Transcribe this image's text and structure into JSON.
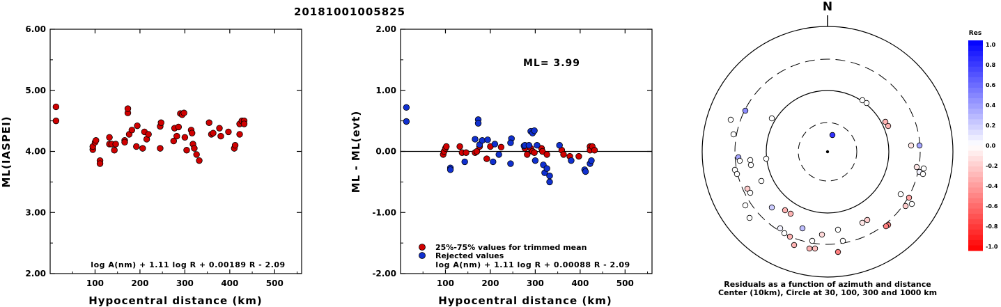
{
  "title": "20181001005825",
  "chart_data": [
    {
      "type": "scatter",
      "xlabel": "Hypocentral distance (km)",
      "ylabel": "ML(IASPEI)",
      "xlim": [
        0,
        560
      ],
      "ylim": [
        2.0,
        6.0
      ],
      "xticks": [
        "100",
        "200",
        "300",
        "400",
        "500"
      ],
      "yticks": [
        "2.00",
        "3.00",
        "4.00",
        "5.00",
        "6.00"
      ],
      "formula": "log A(nm) + 1.11 log R + 0.00189 R - 2.09",
      "series": [
        {
          "color": "#d00000",
          "points": [
            [
              13,
              4.73
            ],
            [
              13,
              4.5
            ],
            [
              95,
              4.03
            ],
            [
              95,
              4.08
            ],
            [
              100,
              4.15
            ],
            [
              102,
              4.18
            ],
            [
              111,
              3.85
            ],
            [
              111,
              3.8
            ],
            [
              132,
              4.12
            ],
            [
              132,
              4.23
            ],
            [
              137,
              4.12
            ],
            [
              143,
              4.02
            ],
            [
              146,
              4.12
            ],
            [
              166,
              4.18
            ],
            [
              166,
              4.15
            ],
            [
              173,
              4.63
            ],
            [
              173,
              4.7
            ],
            [
              176,
              4.28
            ],
            [
              182,
              4.35
            ],
            [
              192,
              4.08
            ],
            [
              194,
              4.42
            ],
            [
              206,
              4.05
            ],
            [
              210,
              4.32
            ],
            [
              215,
              4.2
            ],
            [
              219,
              4.28
            ],
            [
              245,
              4.05
            ],
            [
              245,
              4.41
            ],
            [
              247,
              4.47
            ],
            [
              275,
              4.17
            ],
            [
              277,
              4.38
            ],
            [
              282,
              4.25
            ],
            [
              286,
              4.4
            ],
            [
              290,
              4.62
            ],
            [
              294,
              4.6
            ],
            [
              298,
              4.63
            ],
            [
              300,
              4.23
            ],
            [
              304,
              4.02
            ],
            [
              314,
              4.35
            ],
            [
              316,
              4.3
            ],
            [
              318,
              4.12
            ],
            [
              321,
              4.05
            ],
            [
              326,
              3.95
            ],
            [
              332,
              3.85
            ],
            [
              354,
              4.47
            ],
            [
              359,
              4.28
            ],
            [
              363,
              4.3
            ],
            [
              377,
              4.38
            ],
            [
              380,
              4.25
            ],
            [
              397,
              4.32
            ],
            [
              410,
              4.05
            ],
            [
              412,
              4.1
            ],
            [
              422,
              4.45
            ],
            [
              422,
              4.28
            ],
            [
              427,
              4.5
            ],
            [
              432,
              4.5
            ],
            [
              432,
              4.45
            ]
          ]
        }
      ]
    },
    {
      "type": "scatter",
      "xlabel": "Hypocentral distance (km)",
      "ylabel": "ML - ML(evt)",
      "xlim": [
        0,
        560
      ],
      "ylim": [
        -2.0,
        2.0
      ],
      "xticks": [
        "100",
        "200",
        "300",
        "400",
        "500"
      ],
      "yticks": [
        "-2.00",
        "-1.00",
        "0.00",
        "1.00",
        "2.00"
      ],
      "annotation": "ML= 3.99",
      "hline": 0,
      "formula": "log A(nm) + 1.11 log R + 0.00088 R - 2.09",
      "series": [
        {
          "name": "25%-75% values for trimmed mean",
          "color": "#d00000",
          "points": [
            [
              95,
              -0.05
            ],
            [
              97,
              0.0
            ],
            [
              100,
              0.05
            ],
            [
              102,
              0.08
            ],
            [
              132,
              0.08
            ],
            [
              137,
              -0.02
            ],
            [
              146,
              -0.02
            ],
            [
              166,
              -0.02
            ],
            [
              170,
              0.0
            ],
            [
              176,
              0.08
            ],
            [
              192,
              -0.12
            ],
            [
              200,
              0.08
            ],
            [
              224,
              0.07
            ],
            [
              277,
              0.05
            ],
            [
              282,
              -0.05
            ],
            [
              290,
              0.05
            ],
            [
              294,
              0.0
            ],
            [
              298,
              -0.02
            ],
            [
              314,
              0.05
            ],
            [
              316,
              0.0
            ],
            [
              326,
              -0.05
            ],
            [
              359,
              0.02
            ],
            [
              363,
              -0.05
            ],
            [
              377,
              -0.08
            ],
            [
              397,
              -0.08
            ],
            [
              422,
              0.08
            ],
            [
              422,
              0.02
            ],
            [
              427,
              0.08
            ],
            [
              432,
              0.02
            ]
          ]
        },
        {
          "name": "Rejected values",
          "color": "#1030d0",
          "points": [
            [
              13,
              0.72
            ],
            [
              13,
              0.49
            ],
            [
              111,
              -0.27
            ],
            [
              111,
              -0.3
            ],
            [
              143,
              -0.17
            ],
            [
              166,
              0.2
            ],
            [
              173,
              0.52
            ],
            [
              173,
              0.46
            ],
            [
              176,
              0.11
            ],
            [
              182,
              0.18
            ],
            [
              194,
              0.19
            ],
            [
              206,
              -0.17
            ],
            [
              210,
              0.12
            ],
            [
              219,
              -0.05
            ],
            [
              245,
              -0.2
            ],
            [
              247,
              0.21
            ],
            [
              245,
              0.14
            ],
            [
              275,
              0.09
            ],
            [
              277,
              0.1
            ],
            [
              286,
              0.1
            ],
            [
              290,
              0.33
            ],
            [
              294,
              0.3
            ],
            [
              298,
              0.34
            ],
            [
              300,
              -0.15
            ],
            [
              304,
              0.1
            ],
            [
              318,
              -0.22
            ],
            [
              321,
              -0.35
            ],
            [
              326,
              -0.28
            ],
            [
              332,
              -0.5
            ],
            [
              332,
              -0.4
            ],
            [
              354,
              0.1
            ],
            [
              380,
              -0.15
            ],
            [
              410,
              -0.3
            ],
            [
              412,
              -0.33
            ],
            [
              422,
              -0.2
            ],
            [
              425,
              -0.15
            ]
          ]
        }
      ]
    },
    {
      "type": "scatter",
      "subtype": "polar",
      "north_label": "N",
      "caption1": "Residuals as a function of azimuth and distance",
      "caption2": "Center (10km), Circle at 30, 100, 300 and 1000 km",
      "colorbar_title": "Res",
      "colorbar_ticks": [
        "1.0",
        "0.8",
        "0.6",
        "0.4",
        "0.2",
        "0.0",
        "-0.2",
        "-0.4",
        "-0.6",
        "-0.8",
        "-1.0"
      ],
      "points": [
        {
          "x": 1238,
          "y": 144,
          "res": 0.0
        },
        {
          "x": 1244,
          "y": 148,
          "res": 0.0
        },
        {
          "x": 1271,
          "y": 175,
          "res": -0.3
        },
        {
          "x": 1275,
          "y": 181,
          "res": -0.3
        },
        {
          "x": 1308,
          "y": 209,
          "res": -0.1
        },
        {
          "x": 1320,
          "y": 209,
          "res": 0.35
        },
        {
          "x": 1316,
          "y": 240,
          "res": -0.1
        },
        {
          "x": 1320,
          "y": 247,
          "res": 0.05
        },
        {
          "x": 1326,
          "y": 242,
          "res": 0.0
        },
        {
          "x": 1325,
          "y": 250,
          "res": 0.0
        },
        {
          "x": 1293,
          "y": 279,
          "res": 0.0
        },
        {
          "x": 1305,
          "y": 284,
          "res": -0.35
        },
        {
          "x": 1309,
          "y": 293,
          "res": 0.0
        },
        {
          "x": 1300,
          "y": 296,
          "res": -0.2
        },
        {
          "x": 1245,
          "y": 316,
          "res": -0.2
        },
        {
          "x": 1238,
          "y": 320,
          "res": -0.1
        },
        {
          "x": 1275,
          "y": 323,
          "res": -0.5
        },
        {
          "x": 1272,
          "y": 325,
          "res": -0.5
        },
        {
          "x": 1203,
          "y": 330,
          "res": 0.0
        },
        {
          "x": 1210,
          "y": 346,
          "res": 0.0
        },
        {
          "x": 1203,
          "y": 362,
          "res": -0.5
        },
        {
          "x": 1166,
          "y": 346,
          "res": 0.0
        },
        {
          "x": 1162,
          "y": 357,
          "res": -0.3
        },
        {
          "x": 1170,
          "y": 357,
          "res": -0.25
        },
        {
          "x": 1180,
          "y": 337,
          "res": -0.15
        },
        {
          "x": 1134,
          "y": 340,
          "res": -0.3
        },
        {
          "x": 1140,
          "y": 352,
          "res": -0.3
        },
        {
          "x": 1126,
          "y": 335,
          "res": 0.0
        },
        {
          "x": 1120,
          "y": 328,
          "res": 0.05
        },
        {
          "x": 1152,
          "y": 328,
          "res": 0.25
        },
        {
          "x": 1127,
          "y": 302,
          "res": -0.3
        },
        {
          "x": 1135,
          "y": 307,
          "res": -0.3
        },
        {
          "x": 1108,
          "y": 298,
          "res": 0.2
        },
        {
          "x": 1076,
          "y": 313,
          "res": 0.0
        },
        {
          "x": 1070,
          "y": 295,
          "res": 0.0
        },
        {
          "x": 1073,
          "y": 271,
          "res": -0.2
        },
        {
          "x": 1077,
          "y": 277,
          "res": 0.0
        },
        {
          "x": 1093,
          "y": 260,
          "res": 0.0
        },
        {
          "x": 1100,
          "y": 228,
          "res": 0.0
        },
        {
          "x": 1077,
          "y": 230,
          "res": 0.0
        },
        {
          "x": 1078,
          "y": 237,
          "res": 0.0
        },
        {
          "x": 1060,
          "y": 226,
          "res": 0.35
        },
        {
          "x": 1062,
          "y": 231,
          "res": 0.0
        },
        {
          "x": 1055,
          "y": 244,
          "res": 0.0
        },
        {
          "x": 1058,
          "y": 250,
          "res": 0.0
        },
        {
          "x": 1053,
          "y": 193,
          "res": 0.0
        },
        {
          "x": 1049,
          "y": 172,
          "res": 0.0
        },
        {
          "x": 1070,
          "y": 159,
          "res": 0.45
        },
        {
          "x": 1108,
          "y": 170,
          "res": 0.0
        },
        {
          "x": 1195,
          "y": 194,
          "res": 0.8
        }
      ]
    }
  ]
}
